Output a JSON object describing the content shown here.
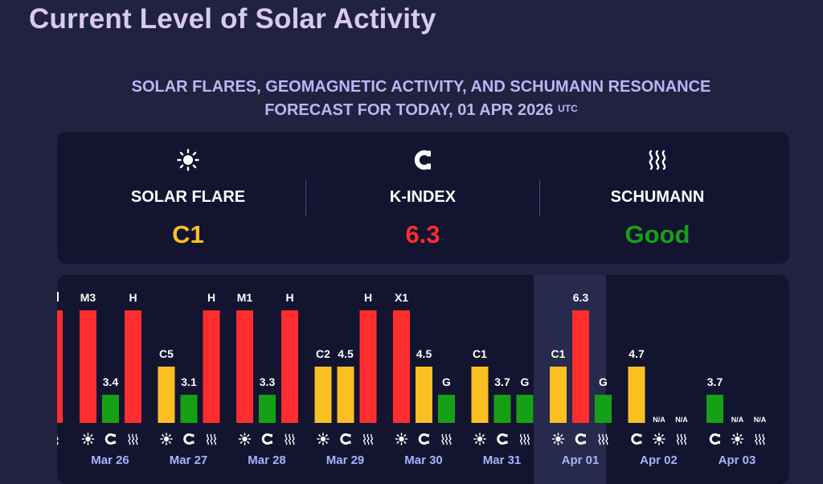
{
  "page_title": "Current Level of Solar Activity",
  "subtitle_line1": "SOLAR FLARES, GEOMAGNETIC ACTIVITY, AND SCHUMANN RESONANCE",
  "subtitle_line2": "FORECAST FOR TODAY, 01 APR 2026",
  "subtitle_sup": "UTC",
  "colors": {
    "red": "#ff2d2d",
    "yellow": "#fbbf24",
    "green": "#16a016",
    "today_bg": "#272a4d",
    "card_bg": "#121430"
  },
  "summary": {
    "solar_flare": {
      "label": "SOLAR FLARE",
      "value": "C1",
      "color": "#fbbf24",
      "icon": "sun-icon"
    },
    "k_index": {
      "label": "K-INDEX",
      "value": "6.3",
      "color": "#ff2d2d",
      "icon": "magnet-icon"
    },
    "schumann": {
      "label": "SCHUMANN",
      "value": "Good",
      "color": "#16a016",
      "icon": "waves-icon"
    }
  },
  "chart_data": {
    "type": "bar",
    "scale": {
      "red": 3,
      "yellow": 2,
      "green": 1
    },
    "partial_left": {
      "labels": [
        "",
        "",
        "H"
      ]
    },
    "days": [
      {
        "date": "Mar 26",
        "bars": [
          {
            "kind": "flare",
            "label": "M3",
            "level": "red"
          },
          {
            "kind": "k",
            "label": "3.4",
            "level": "green"
          },
          {
            "kind": "schumann",
            "label": "H",
            "level": "red"
          }
        ]
      },
      {
        "date": "Mar 27",
        "bars": [
          {
            "kind": "flare",
            "label": "C5",
            "level": "yellow"
          },
          {
            "kind": "k",
            "label": "3.1",
            "level": "green"
          },
          {
            "kind": "schumann",
            "label": "H",
            "level": "red"
          }
        ]
      },
      {
        "date": "Mar 28",
        "bars": [
          {
            "kind": "flare",
            "label": "M1",
            "level": "red"
          },
          {
            "kind": "k",
            "label": "3.3",
            "level": "green"
          },
          {
            "kind": "schumann",
            "label": "H",
            "level": "red"
          }
        ]
      },
      {
        "date": "Mar 29",
        "bars": [
          {
            "kind": "flare",
            "label": "C2",
            "level": "yellow"
          },
          {
            "kind": "k",
            "label": "4.5",
            "level": "yellow"
          },
          {
            "kind": "schumann",
            "label": "H",
            "level": "red"
          }
        ]
      },
      {
        "date": "Mar 30",
        "bars": [
          {
            "kind": "flare",
            "label": "X1",
            "level": "red"
          },
          {
            "kind": "k",
            "label": "4.5",
            "level": "yellow"
          },
          {
            "kind": "schumann",
            "label": "G",
            "level": "green"
          }
        ]
      },
      {
        "date": "Mar 31",
        "bars": [
          {
            "kind": "flare",
            "label": "C1",
            "level": "yellow"
          },
          {
            "kind": "k",
            "label": "3.7",
            "level": "green"
          },
          {
            "kind": "schumann",
            "label": "G",
            "level": "green"
          }
        ]
      },
      {
        "date": "Apr 01",
        "today": true,
        "bars": [
          {
            "kind": "flare",
            "label": "C1",
            "level": "yellow"
          },
          {
            "kind": "k",
            "label": "6.3",
            "level": "red"
          },
          {
            "kind": "schumann",
            "label": "G",
            "level": "green"
          }
        ]
      },
      {
        "date": "Apr 02",
        "bars": [
          {
            "kind": "k",
            "label": "4.7",
            "level": "yellow"
          },
          {
            "kind": "flare",
            "label": "N/A",
            "level": null
          },
          {
            "kind": "schumann",
            "label": "N/A",
            "level": null
          }
        ]
      },
      {
        "date": "Apr 03",
        "bars": [
          {
            "kind": "k",
            "label": "3.7",
            "level": "green"
          },
          {
            "kind": "flare",
            "label": "N/A",
            "level": null
          },
          {
            "kind": "schumann",
            "label": "N/A",
            "level": null
          }
        ]
      }
    ]
  }
}
